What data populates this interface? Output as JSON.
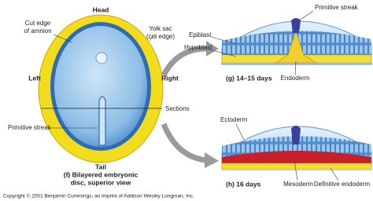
{
  "disc": {
    "head": "Head",
    "tail": "Tail",
    "left": "Left",
    "right": "Right",
    "amnion": [
      "Cut edge",
      "of amnion"
    ],
    "yolk_sac": [
      "Yolk sac",
      "(cut edge)"
    ],
    "sections": "Sections",
    "primitive_streak": "Primitive streak",
    "caption": [
      "(f) Bilayered embryonic",
      "disc, superior view"
    ]
  },
  "section_g": {
    "epiblast": "Epiblast",
    "hypoblast": "Hypoblast",
    "primitive_streak": "Primitive streak",
    "caption": "(g) 14–15 days",
    "endoderm": "Endoderm"
  },
  "section_h": {
    "ectoderm": "Ectoderm",
    "caption": "(h) 16 days",
    "mesoderm": "Mesoderm",
    "definitive_endoderm": "Definitive endoderm"
  },
  "copyright": "Copyright © 2001 Benjamin Cummings, an imprint of Addison Wesley Longman, Inc."
}
